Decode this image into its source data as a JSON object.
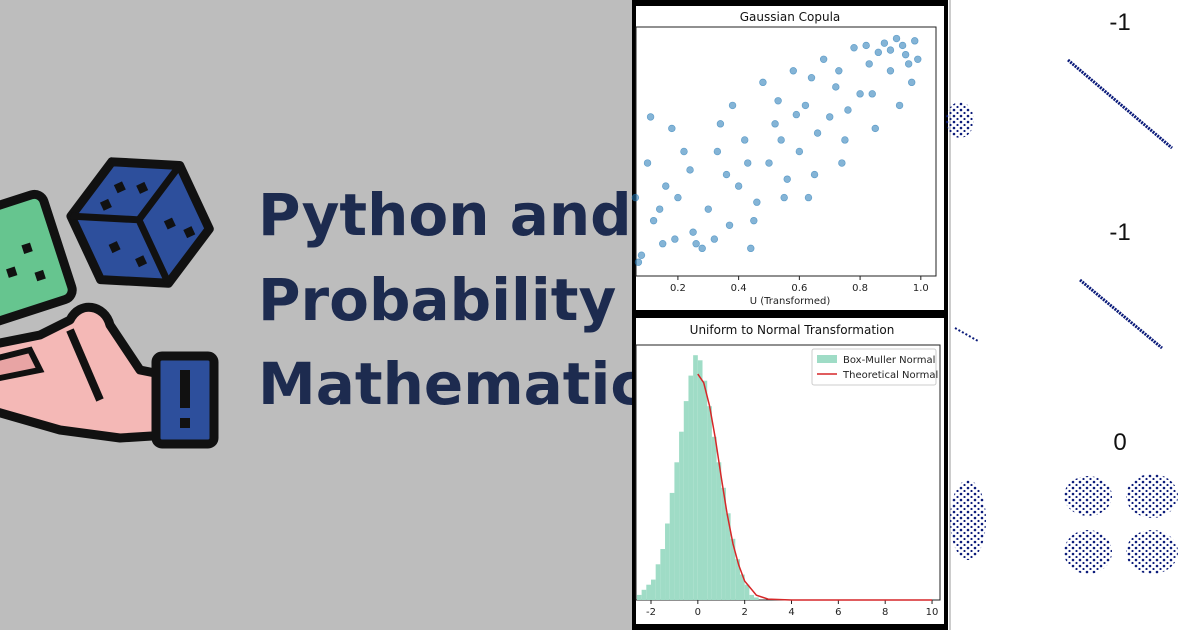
{
  "banner": {
    "title_lines": [
      "Python and",
      "Probability",
      "Mathematics"
    ]
  },
  "chart_data": [
    {
      "type": "scatter",
      "title": "Gaussian Copula",
      "xlabel": "U (Transformed)",
      "color": "#1f77b4",
      "xlim": [
        0.062,
        1.05
      ],
      "ylim": [
        -0.04,
        1.04
      ],
      "xticks": [
        0.2,
        0.4,
        0.6,
        0.8,
        {
          "value": 1,
          "label": "1.0"
        }
      ],
      "x": [
        0.08,
        0.12,
        0.15,
        0.1,
        0.2,
        0.25,
        0.18,
        0.3,
        0.33,
        0.28,
        0.4,
        0.38,
        0.45,
        0.42,
        0.5,
        0.48,
        0.55,
        0.52,
        0.6,
        0.58,
        0.65,
        0.62,
        0.7,
        0.68,
        0.75,
        0.72,
        0.8,
        0.78,
        0.85,
        0.83,
        0.9,
        0.88,
        0.95,
        0.93,
        0.98,
        0.97,
        0.92,
        0.86,
        0.76,
        0.66,
        0.56,
        0.46,
        0.36,
        0.26,
        0.16,
        0.07,
        0.11,
        0.22,
        0.32,
        0.43,
        0.53,
        0.63,
        0.73,
        0.84,
        0.94,
        0.99,
        0.14,
        0.24,
        0.34,
        0.44,
        0.54,
        0.64,
        0.74,
        0.82,
        0.9,
        0.96,
        0.06,
        0.19,
        0.37,
        0.59
      ],
      "values": [
        0.05,
        0.2,
        0.1,
        0.45,
        0.3,
        0.15,
        0.6,
        0.25,
        0.5,
        0.08,
        0.35,
        0.7,
        0.2,
        0.55,
        0.45,
        0.8,
        0.3,
        0.62,
        0.5,
        0.85,
        0.4,
        0.7,
        0.65,
        0.9,
        0.55,
        0.78,
        0.75,
        0.95,
        0.6,
        0.88,
        0.85,
        0.97,
        0.92,
        0.7,
        0.98,
        0.8,
        0.99,
        0.93,
        0.68,
        0.58,
        0.38,
        0.28,
        0.4,
        0.1,
        0.35,
        0.02,
        0.65,
        0.5,
        0.12,
        0.45,
        0.72,
        0.3,
        0.85,
        0.75,
        0.96,
        0.9,
        0.25,
        0.42,
        0.62,
        0.08,
        0.55,
        0.82,
        0.45,
        0.96,
        0.94,
        0.88,
        0.3,
        0.12,
        0.18,
        0.66
      ]
    },
    {
      "type": "histogram",
      "title": "Uniform to Normal Transformation",
      "name": "Box-Muller Normal",
      "color": "#9fdcc6",
      "xlim": [
        -2.64,
        10.34
      ],
      "ylim": [
        0,
        0.5
      ],
      "xticks": [
        -2,
        0,
        2,
        4,
        6,
        8,
        10
      ],
      "bins": [
        -2.6,
        -2.4,
        -2.2,
        -2,
        -1.8,
        -1.6,
        -1.4,
        -1.2,
        -1,
        -0.8,
        -0.6,
        -0.4,
        -0.2,
        0,
        0.2,
        0.4,
        0.6,
        0.8,
        1,
        1.2,
        1.4,
        1.6,
        1.8,
        2,
        2.2,
        2.4,
        2.6
      ],
      "values": [
        0.01,
        0.02,
        0.03,
        0.04,
        0.07,
        0.1,
        0.15,
        0.21,
        0.27,
        0.33,
        0.39,
        0.44,
        0.48,
        0.47,
        0.43,
        0.38,
        0.32,
        0.27,
        0.22,
        0.17,
        0.12,
        0.08,
        0.05,
        0.03,
        0.01,
        0.005
      ],
      "lines": [
        {
          "name": "Theoretical Normal",
          "color": "#d62728",
          "x": [
            0,
            0.25,
            0.5,
            0.75,
            1,
            1.25,
            1.5,
            1.75,
            2,
            2.5,
            3,
            4,
            6,
            8,
            10
          ],
          "values": [
            0.443,
            0.426,
            0.381,
            0.316,
            0.24,
            0.169,
            0.11,
            0.068,
            0.037,
            0.0094,
            0.0017,
            0,
            0,
            0,
            0
          ]
        }
      ],
      "legend": "upper right"
    }
  ],
  "correlation_panel": {
    "correlations": [
      -1,
      -1,
      0
    ]
  }
}
